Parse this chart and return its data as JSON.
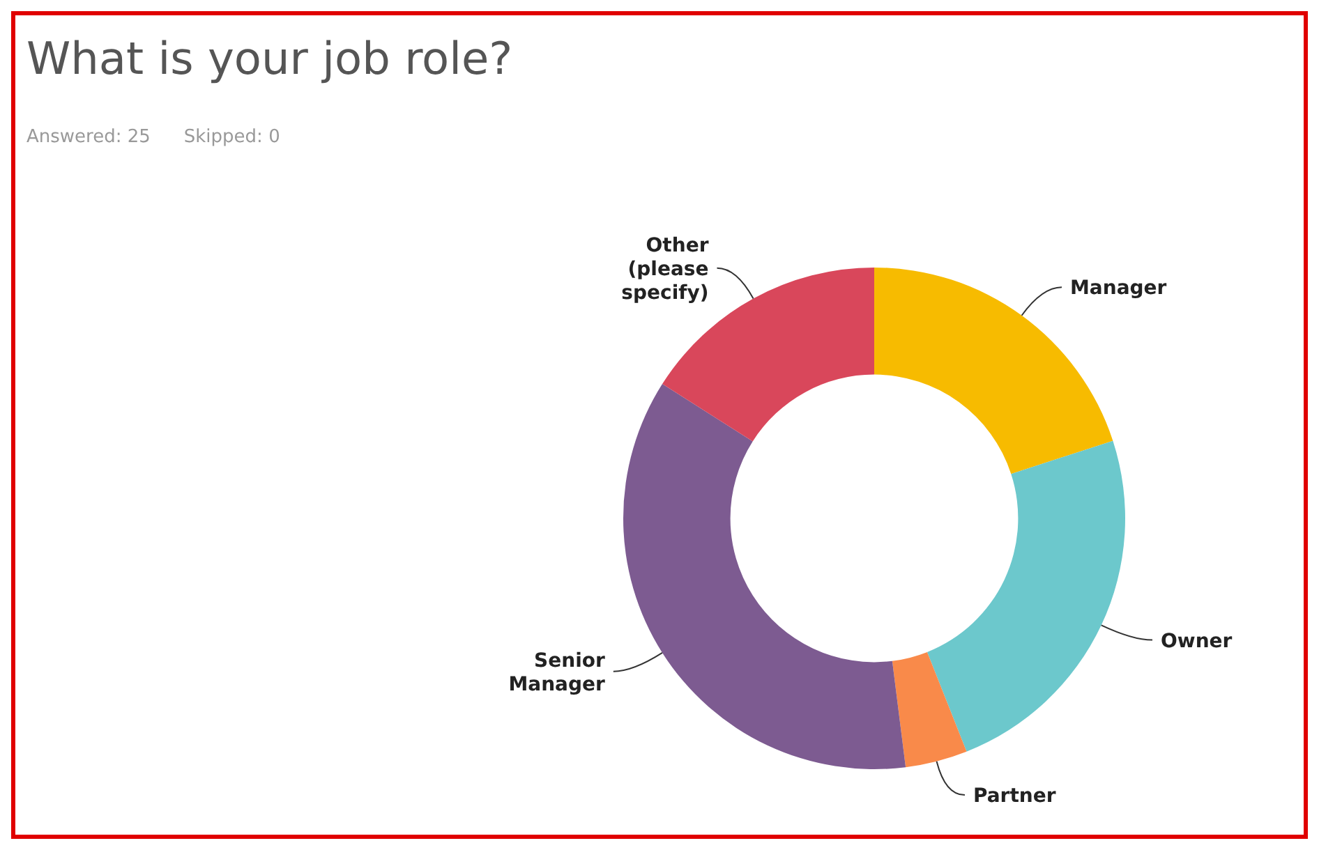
{
  "chart_data": {
    "type": "donut",
    "title": "What is your job role?",
    "annotations": [
      "Answered: 25",
      "Skipped: 0"
    ],
    "categories": [
      "Manager",
      "Owner",
      "Partner",
      "Senior Manager",
      "Other (please specify)"
    ],
    "values": [
      20,
      24,
      4,
      36,
      16
    ],
    "colors": [
      "#f7bb00",
      "#6cc8cc",
      "#f98a4a",
      "#7d5b91",
      "#d9475b"
    ],
    "legend": false
  }
}
